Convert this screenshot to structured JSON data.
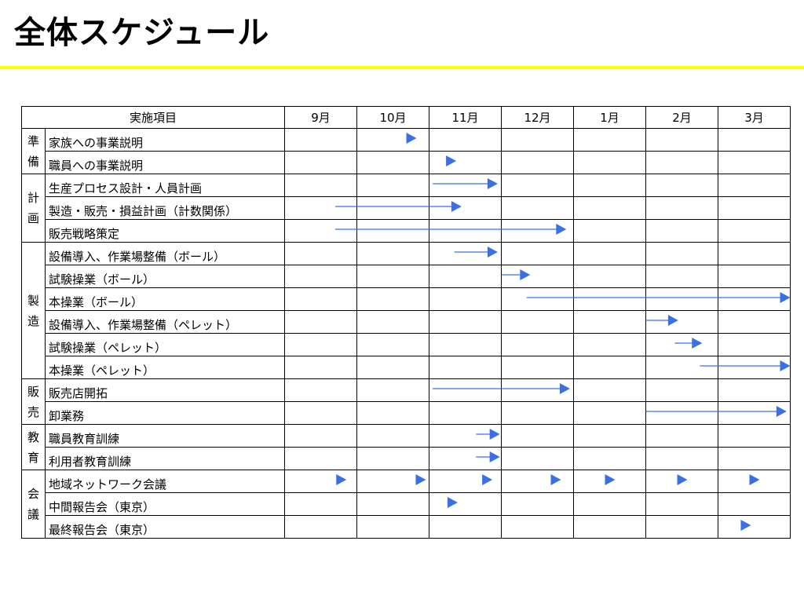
{
  "title": "全体スケジュール",
  "header": {
    "item_label": "実施項目",
    "months": [
      "9月",
      "10月",
      "11月",
      "12月",
      "1月",
      "2月",
      "3月"
    ]
  },
  "groups": [
    {
      "category": "準備",
      "tasks": [
        "家族への事業説明",
        "職員への事業説明"
      ]
    },
    {
      "category": "計画",
      "tasks": [
        "生産プロセス設計・人員計画",
        "製造・販売・損益計画（計数関係）",
        "販売戦略策定"
      ]
    },
    {
      "category": "製造",
      "tasks": [
        "設備導入、作業場整備（ボール）",
        "試験操業（ボール）",
        "本操業（ボール）",
        "設備導入、作業場整備（ペレット）",
        "試験操業（ペレット）",
        "本操業（ペレット）"
      ]
    },
    {
      "category": "販売",
      "tasks": [
        "販売店開拓",
        "卸業務"
      ]
    },
    {
      "category": "教育",
      "tasks": [
        "職員教育訓練",
        "利用者教育訓練"
      ]
    },
    {
      "category": "会議",
      "tasks": [
        "地域ネットワーク会議",
        "中間報告会（東京）",
        "最終報告会（東京）"
      ]
    }
  ],
  "arrow_color": "#3b6fe6",
  "schedule": [
    {
      "task": "家族への事業説明",
      "marks": [
        {
          "type": "milestone",
          "month": "10月",
          "at": 0.75
        }
      ]
    },
    {
      "task": "職員への事業説明",
      "marks": [
        {
          "type": "milestone",
          "month": "11月",
          "at": 0.3
        }
      ]
    },
    {
      "task": "生産プロセス設計・人員計画",
      "marks": [
        {
          "type": "bar",
          "from": "11月",
          "from_at": 0.05,
          "to": "11月",
          "to_at": 0.95
        }
      ]
    },
    {
      "task": "製造・販売・損益計画（計数関係）",
      "marks": [
        {
          "type": "bar",
          "from": "9月",
          "from_at": 0.7,
          "to": "11月",
          "to_at": 0.45
        }
      ]
    },
    {
      "task": "販売戦略策定",
      "marks": [
        {
          "type": "bar",
          "from": "9月",
          "from_at": 0.7,
          "to": "12月",
          "to_at": 0.9
        }
      ]
    },
    {
      "task": "設備導入、作業場整備（ボール）",
      "marks": [
        {
          "type": "bar",
          "from": "11月",
          "from_at": 0.35,
          "to": "11月",
          "to_at": 0.95
        }
      ]
    },
    {
      "task": "試験操業（ボール）",
      "marks": [
        {
          "type": "bar",
          "from": "12月",
          "from_at": 0.0,
          "to": "12月",
          "to_at": 0.4
        }
      ]
    },
    {
      "task": "本操業（ボール）",
      "marks": [
        {
          "type": "bar",
          "from": "12月",
          "from_at": 0.35,
          "to": "3月",
          "to_at": 1.0
        }
      ]
    },
    {
      "task": "設備導入、作業場整備（ペレット）",
      "marks": [
        {
          "type": "bar",
          "from": "2月",
          "from_at": 0.0,
          "to": "2月",
          "to_at": 0.45
        }
      ]
    },
    {
      "task": "試験操業（ペレット）",
      "marks": [
        {
          "type": "bar",
          "from": "2月",
          "from_at": 0.4,
          "to": "2月",
          "to_at": 0.78
        }
      ]
    },
    {
      "task": "本操業（ペレット）",
      "marks": [
        {
          "type": "bar",
          "from": "2月",
          "from_at": 0.75,
          "to": "3月",
          "to_at": 1.0
        }
      ]
    },
    {
      "task": "販売店開拓",
      "marks": [
        {
          "type": "bar",
          "from": "11月",
          "from_at": 0.05,
          "to": "12月",
          "to_at": 0.95
        }
      ]
    },
    {
      "task": "卸業務",
      "marks": [
        {
          "type": "bar",
          "from": "2月",
          "from_at": 0.0,
          "to": "3月",
          "to_at": 0.95
        }
      ]
    },
    {
      "task": "職員教育訓練",
      "marks": [
        {
          "type": "bar",
          "from": "11月",
          "from_at": 0.65,
          "to": "11月",
          "to_at": 0.98
        }
      ]
    },
    {
      "task": "利用者教育訓練",
      "marks": [
        {
          "type": "bar",
          "from": "11月",
          "from_at": 0.65,
          "to": "11月",
          "to_at": 0.98
        }
      ]
    },
    {
      "task": "地域ネットワーク会議",
      "marks": [
        {
          "type": "milestone",
          "month": "9月",
          "at": 0.78
        },
        {
          "type": "milestone",
          "month": "10月",
          "at": 0.88
        },
        {
          "type": "milestone",
          "month": "11月",
          "at": 0.8
        },
        {
          "type": "milestone",
          "month": "12月",
          "at": 0.75
        },
        {
          "type": "milestone",
          "month": "1月",
          "at": 0.5
        },
        {
          "type": "milestone",
          "month": "2月",
          "at": 0.5
        },
        {
          "type": "milestone",
          "month": "3月",
          "at": 0.5
        }
      ]
    },
    {
      "task": "中間報告会（東京）",
      "marks": [
        {
          "type": "milestone",
          "month": "11月",
          "at": 0.32
        }
      ]
    },
    {
      "task": "最終報告会（東京）",
      "marks": [
        {
          "type": "milestone",
          "month": "3月",
          "at": 0.38
        }
      ]
    }
  ]
}
